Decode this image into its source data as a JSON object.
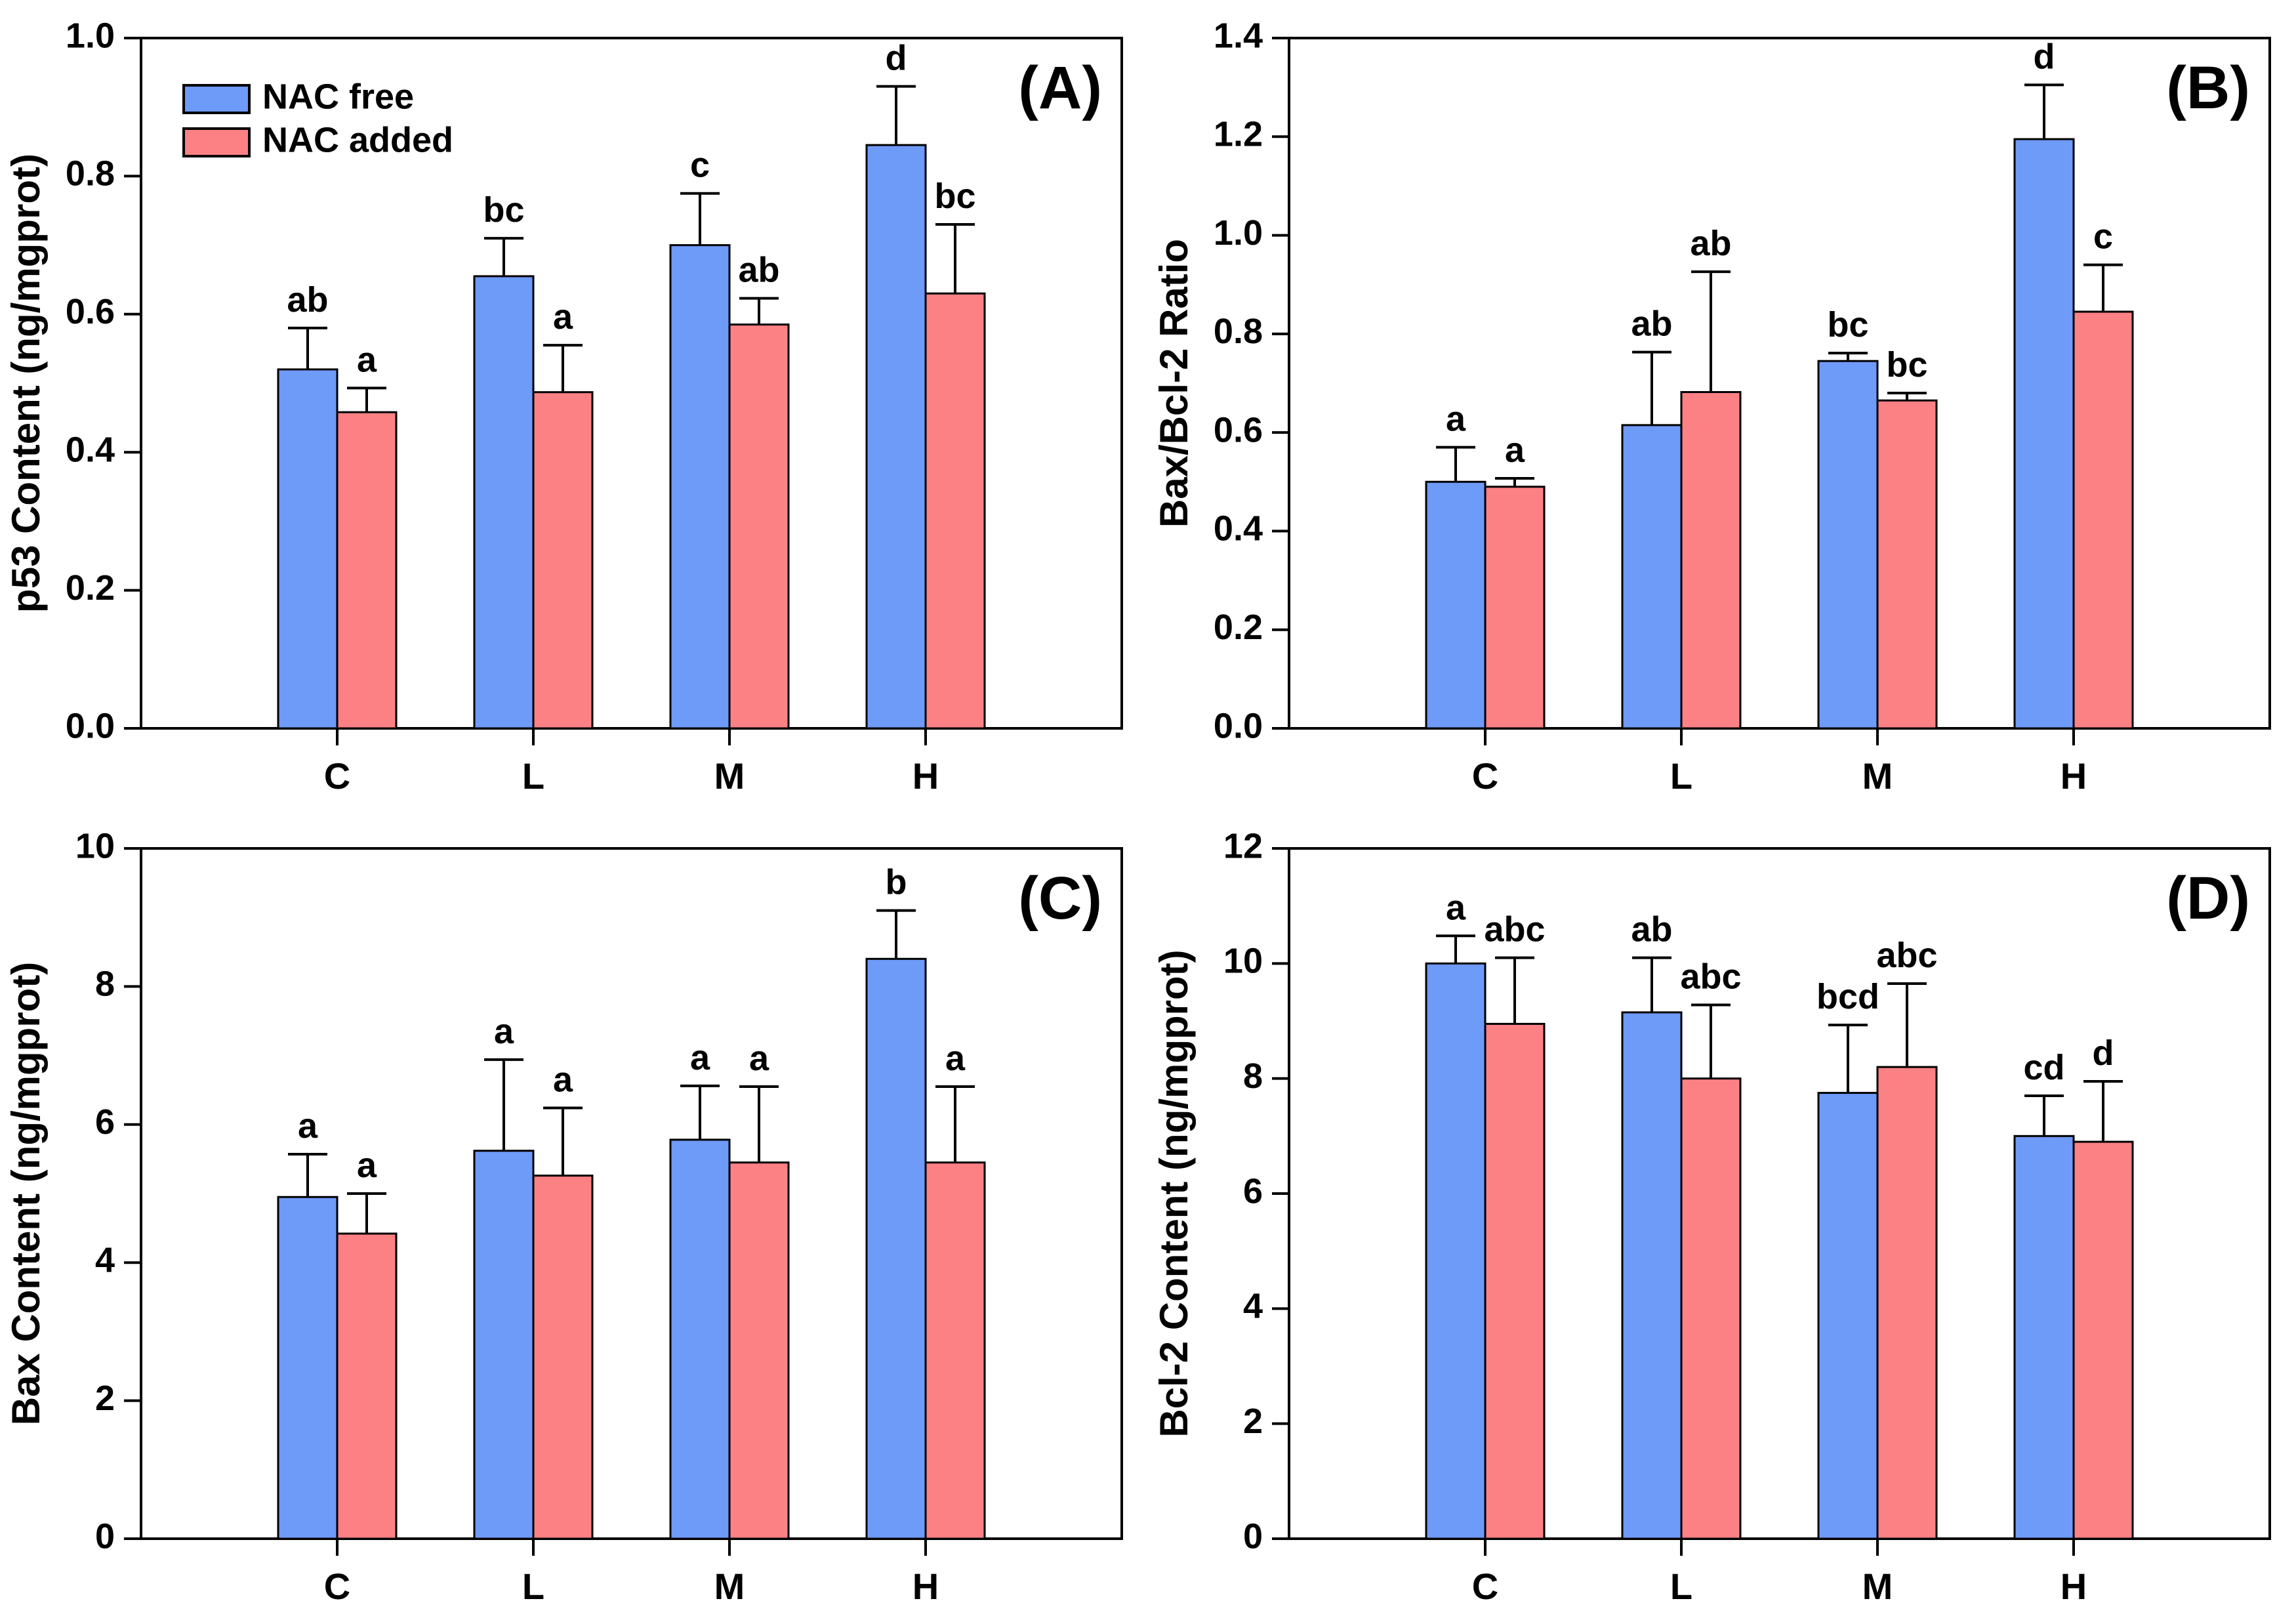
{
  "figure": {
    "background": "#ffffff",
    "axis_color": "#000000",
    "bar_outline_color": "#000000",
    "legend": {
      "items": [
        {
          "label": "NAC free",
          "color": "#6E9AF8"
        },
        {
          "label": "NAC added",
          "color": "#FB8185"
        }
      ]
    }
  },
  "chart_data": [
    {
      "type": "bar",
      "panel_tag": "(A)",
      "ylabel": "p53 Content (ng/mgprot)",
      "xlabel": "",
      "ylim": [
        0,
        1.0
      ],
      "ytick_step": 0.2,
      "ytick_decimals": 1,
      "grid": false,
      "legend_position": "top-left-inside",
      "show_legend": true,
      "categories": [
        "C",
        "L",
        "M",
        "H"
      ],
      "series": [
        {
          "name": "NAC free",
          "color": "#6E9AF8",
          "values": [
            0.52,
            0.655,
            0.7,
            0.845
          ],
          "errors": [
            0.06,
            0.055,
            0.075,
            0.085
          ],
          "letters": [
            "ab",
            "bc",
            "c",
            "d"
          ]
        },
        {
          "name": "NAC added",
          "color": "#FB8185",
          "values": [
            0.458,
            0.487,
            0.585,
            0.63
          ],
          "errors": [
            0.035,
            0.068,
            0.038,
            0.1
          ],
          "letters": [
            "a",
            "a",
            "ab",
            "bc"
          ]
        }
      ]
    },
    {
      "type": "bar",
      "panel_tag": "(B)",
      "ylabel": "Bax/Bcl-2 Ratio",
      "xlabel": "",
      "ylim": [
        0,
        1.4
      ],
      "ytick_step": 0.2,
      "ytick_decimals": 1,
      "grid": false,
      "show_legend": false,
      "categories": [
        "C",
        "L",
        "M",
        "H"
      ],
      "series": [
        {
          "name": "NAC free",
          "color": "#6E9AF8",
          "values": [
            0.5,
            0.615,
            0.745,
            1.195
          ],
          "errors": [
            0.07,
            0.148,
            0.016,
            0.11
          ],
          "letters": [
            "a",
            "ab",
            "bc",
            "d"
          ]
        },
        {
          "name": "NAC added",
          "color": "#FB8185",
          "values": [
            0.49,
            0.682,
            0.665,
            0.845
          ],
          "errors": [
            0.017,
            0.244,
            0.015,
            0.095
          ],
          "letters": [
            "a",
            "ab",
            "bc",
            "c"
          ]
        }
      ]
    },
    {
      "type": "bar",
      "panel_tag": "(C)",
      "ylabel": "Bax Content (ng/mgprot)",
      "xlabel": "",
      "ylim": [
        0,
        10
      ],
      "ytick_step": 2,
      "ytick_decimals": 0,
      "grid": false,
      "show_legend": false,
      "categories": [
        "C",
        "L",
        "M",
        "H"
      ],
      "series": [
        {
          "name": "NAC free",
          "color": "#6E9AF8",
          "values": [
            4.95,
            5.62,
            5.78,
            8.4
          ],
          "errors": [
            0.62,
            1.32,
            0.78,
            0.7
          ],
          "letters": [
            "a",
            "a",
            "a",
            "b"
          ]
        },
        {
          "name": "NAC added",
          "color": "#FB8185",
          "values": [
            4.42,
            5.26,
            5.45,
            5.45
          ],
          "errors": [
            0.58,
            0.98,
            1.1,
            1.1
          ],
          "letters": [
            "a",
            "a",
            "a",
            "a"
          ]
        }
      ]
    },
    {
      "type": "bar",
      "panel_tag": "(D)",
      "ylabel": "Bcl-2 Content (ng/mgprot)",
      "xlabel": "",
      "ylim": [
        0,
        12
      ],
      "ytick_step": 2,
      "ytick_decimals": 0,
      "grid": false,
      "show_legend": false,
      "categories": [
        "C",
        "L",
        "M",
        "H"
      ],
      "series": [
        {
          "name": "NAC free",
          "color": "#6E9AF8",
          "values": [
            10.0,
            9.15,
            7.75,
            7.0
          ],
          "errors": [
            0.48,
            0.95,
            1.18,
            0.7
          ],
          "letters": [
            "a",
            "ab",
            "bcd",
            "cd"
          ]
        },
        {
          "name": "NAC added",
          "color": "#FB8185",
          "values": [
            8.95,
            8.0,
            8.2,
            6.9
          ],
          "errors": [
            1.15,
            1.28,
            1.45,
            1.05
          ],
          "letters": [
            "abc",
            "abc",
            "abc",
            "d"
          ]
        }
      ]
    }
  ]
}
